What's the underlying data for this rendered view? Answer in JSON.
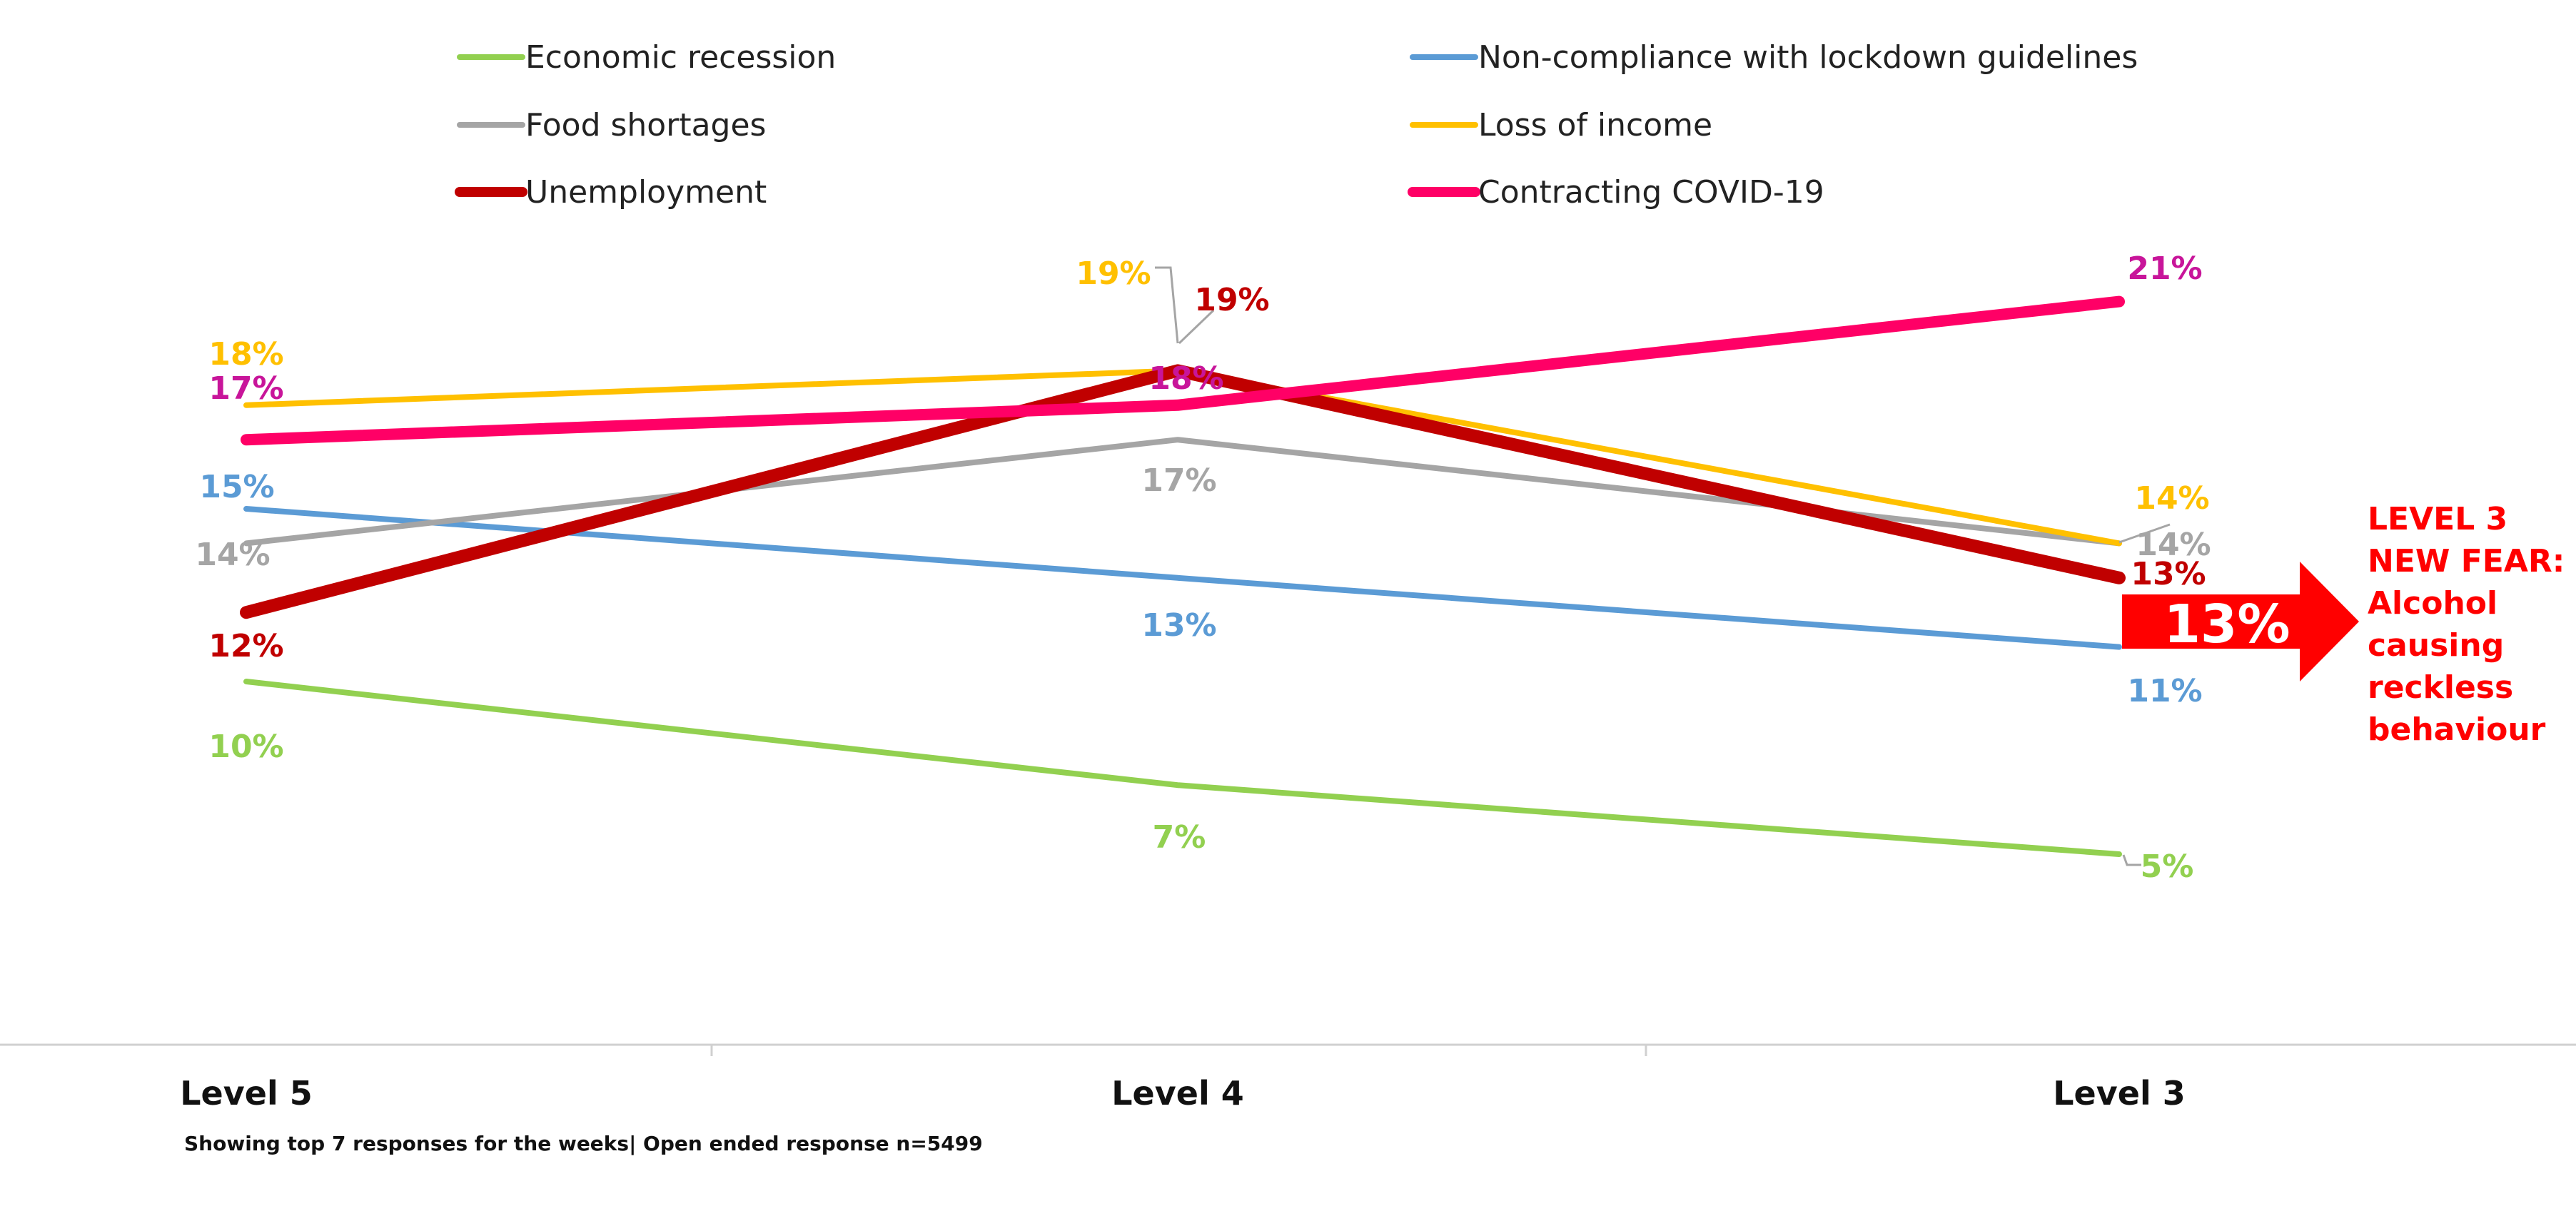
{
  "chart_data": {
    "type": "line",
    "categories": [
      "Level 5",
      "Level 4",
      "Level 3"
    ],
    "series": [
      {
        "name": "Economic recession",
        "color": "#92D050",
        "label_color": "#92D050",
        "values": [
          10,
          7,
          5
        ],
        "labels": [
          "10%",
          "7%",
          "5%"
        ]
      },
      {
        "name": "Non-compliance with lockdown guidelines",
        "color": "#5B9BD5",
        "label_color": "#5B9BD5",
        "values": [
          15,
          13,
          11
        ],
        "labels": [
          "15%",
          "13%",
          "11%"
        ]
      },
      {
        "name": "Food shortages",
        "color": "#A5A5A5",
        "label_color": "#A5A5A5",
        "values": [
          14,
          17,
          14
        ],
        "labels": [
          "14%",
          "17%",
          "14%"
        ]
      },
      {
        "name": "Loss of income",
        "color": "#FFC000",
        "label_color": "#FFC000",
        "values": [
          18,
          19,
          14
        ],
        "labels": [
          "18%",
          "19%",
          "14%"
        ]
      },
      {
        "name": "Unemployment",
        "color": "#C00000",
        "label_color": "#C00000",
        "values": [
          12,
          19,
          13
        ],
        "labels": [
          "12%",
          "19%",
          "13%"
        ]
      },
      {
        "name": "Contracting COVID-19",
        "color": "#FF0066",
        "label_color": "#C8159A",
        "values": [
          17,
          18,
          21
        ],
        "labels": [
          "17%",
          "18%",
          "21%"
        ]
      }
    ],
    "legend_position": "top",
    "grid": false,
    "ylim": [
      0,
      25
    ],
    "xlabel": "",
    "ylabel": ""
  },
  "annotation": {
    "arrow_value": "13%",
    "arrow_color": "#FF0000",
    "lines": [
      "LEVEL 3",
      "NEW FEAR:",
      "Alcohol",
      "causing",
      "reckless",
      "behaviour"
    ]
  },
  "footnote": "Showing top 7 responses for the weeks| Open ended response n=5499"
}
